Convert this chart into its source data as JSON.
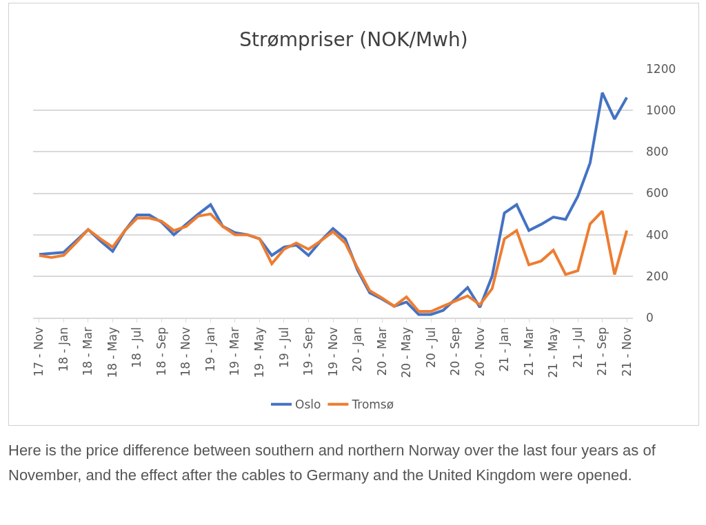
{
  "chart_data": {
    "type": "line",
    "title": "Strømpriser (NOK/Mwh)",
    "categories": [
      "17 - Nov",
      null,
      "18 - Jan",
      null,
      "18 - Mar",
      null,
      "18 - May",
      null,
      "18 - Jul",
      null,
      "18 - Sep",
      null,
      "18 - Nov",
      null,
      "19 - Jan",
      null,
      "19 - Mar",
      null,
      "19 - May",
      null,
      "19 - Jul",
      null,
      "19 - Sep",
      null,
      "19 - Nov",
      null,
      "20 - Jan",
      null,
      "20 - Mar",
      null,
      "20 - May",
      null,
      "20 - Jul",
      null,
      "20 - Sep",
      null,
      "20 - Nov",
      null,
      "21 - Jan",
      null,
      "21 - Mar",
      null,
      "21 - May",
      null,
      "21 - Jul",
      null,
      "21 - Sep",
      null,
      "21 - Nov"
    ],
    "series": [
      {
        "name": "Oslo",
        "color": "#4472c4",
        "values": [
          305,
          310,
          315,
          370,
          425,
          370,
          320,
          420,
          495,
          495,
          460,
          400,
          450,
          500,
          545,
          440,
          410,
          400,
          380,
          300,
          340,
          350,
          300,
          370,
          430,
          380,
          230,
          120,
          90,
          55,
          75,
          15,
          15,
          35,
          90,
          145,
          50,
          200,
          505,
          545,
          420,
          450,
          485,
          474,
          585,
          746,
          1085,
          958,
          1062
        ]
      },
      {
        "name": "Tromsø",
        "color": "#ed7d31",
        "values": [
          300,
          290,
          300,
          360,
          425,
          380,
          340,
          420,
          480,
          480,
          465,
          420,
          440,
          490,
          500,
          440,
          400,
          400,
          380,
          260,
          330,
          360,
          330,
          370,
          415,
          360,
          240,
          130,
          95,
          55,
          100,
          30,
          30,
          55,
          80,
          105,
          62,
          140,
          380,
          420,
          255,
          273,
          325,
          208,
          226,
          452,
          514,
          208,
          420
        ]
      }
    ],
    "ylim": [
      0,
      1200
    ],
    "yticks": [
      0,
      200,
      400,
      600,
      800,
      1000,
      1200
    ],
    "grid": "y",
    "legend": "bottom",
    "marker": "none",
    "line_style": "solid",
    "annotations": [
      "Here is the price difference between southern and northern Norway over the last four years as of November, and the effect after the cables to Germany and the United Kingdom were opened."
    ]
  }
}
